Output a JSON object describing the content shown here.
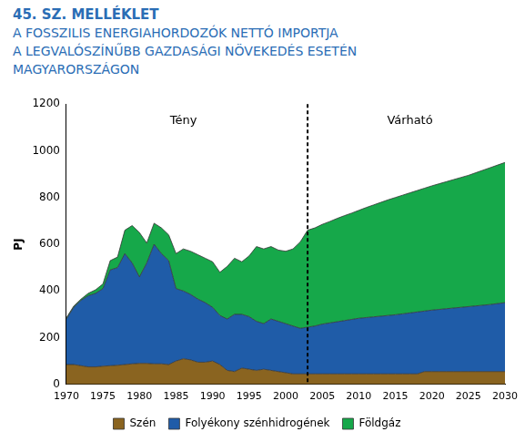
{
  "chart_data": {
    "type": "area",
    "title": "45. SZ. MELLÉKLET",
    "subtitle": [
      "A FOSSZILIS ENERGIAHORDOZÓK NETTÓ IMPORTJA",
      "A LEGVALÓSZÍNŰBB GAZDASÁGI NÖVEKEDÉS ESETÉN",
      "MAGYARORSZÁGON"
    ],
    "y_label": "PJ",
    "stacked": true,
    "grid": false,
    "legend": "bottom",
    "xlim": [
      1970,
      2030
    ],
    "xticks": [
      1970,
      1975,
      1980,
      1985,
      1990,
      1995,
      2000,
      2005,
      2010,
      2015,
      2020,
      2025,
      2030
    ],
    "ylim": [
      0,
      1200
    ],
    "yticks": [
      0,
      200,
      400,
      600,
      800,
      1000,
      1200
    ],
    "annotations": [
      {
        "type": "vline",
        "x": 2003,
        "line_style": "dashed"
      },
      {
        "type": "text",
        "text": "Tény",
        "x": 1986,
        "y": 1130
      },
      {
        "type": "text",
        "text": "Várható",
        "x": 2017,
        "y": 1130
      }
    ],
    "x": [
      1970,
      1971,
      1972,
      1973,
      1974,
      1975,
      1976,
      1977,
      1978,
      1979,
      1980,
      1981,
      1982,
      1983,
      1984,
      1985,
      1986,
      1987,
      1988,
      1989,
      1990,
      1991,
      1992,
      1993,
      1994,
      1995,
      1996,
      1997,
      1998,
      1999,
      2000,
      2001,
      2002,
      2003,
      2004,
      2005,
      2006,
      2007,
      2008,
      2009,
      2010,
      2011,
      2012,
      2013,
      2014,
      2015,
      2016,
      2017,
      2018,
      2019,
      2020,
      2021,
      2022,
      2023,
      2024,
      2025,
      2026,
      2027,
      2028,
      2029,
      2030
    ],
    "series": [
      {
        "name": "Szén",
        "color": "#8a6420",
        "values": [
          85,
          85,
          80,
          75,
          75,
          78,
          80,
          82,
          85,
          88,
          90,
          90,
          88,
          88,
          85,
          100,
          110,
          105,
          95,
          95,
          100,
          85,
          60,
          55,
          70,
          65,
          60,
          65,
          60,
          55,
          50,
          45,
          45,
          45,
          45,
          45,
          45,
          45,
          45,
          45,
          45,
          45,
          45,
          45,
          45,
          45,
          45,
          45,
          45,
          55,
          55,
          55,
          55,
          55,
          55,
          55,
          55,
          55,
          55,
          55,
          55
        ]
      },
      {
        "name": "Folyékony szénhidrogének",
        "color": "#1f5ca8",
        "values": [
          195,
          245,
          280,
          305,
          315,
          332,
          410,
          418,
          475,
          432,
          370,
          430,
          512,
          472,
          445,
          310,
          290,
          280,
          270,
          255,
          230,
          210,
          220,
          245,
          230,
          225,
          210,
          195,
          220,
          215,
          210,
          205,
          195,
          200,
          205,
          213,
          218,
          223,
          228,
          233,
          238,
          241,
          244,
          247,
          250,
          253,
          257,
          261,
          265,
          259,
          263,
          266,
          269,
          272,
          275,
          278,
          281,
          284,
          287,
          291,
          295
        ]
      },
      {
        "name": "Földgáz",
        "color": "#16a84a",
        "values": [
          5,
          5,
          5,
          10,
          15,
          20,
          40,
          45,
          100,
          160,
          190,
          85,
          90,
          110,
          110,
          150,
          180,
          185,
          190,
          190,
          195,
          185,
          225,
          240,
          225,
          260,
          320,
          320,
          310,
          305,
          310,
          330,
          370,
          415,
          420,
          427,
          434,
          442,
          449,
          455,
          462,
          471,
          479,
          487,
          495,
          502,
          508,
          514,
          520,
          526,
          532,
          538,
          544,
          550,
          556,
          562,
          570,
          578,
          586,
          593,
          600
        ]
      }
    ]
  }
}
